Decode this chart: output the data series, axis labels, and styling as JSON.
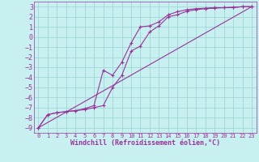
{
  "xlabel": "Windchill (Refroidissement éolien,°C)",
  "xlim": [
    -0.5,
    23.5
  ],
  "ylim": [
    -9.5,
    3.5
  ],
  "xticks": [
    0,
    1,
    2,
    3,
    4,
    5,
    6,
    7,
    8,
    9,
    10,
    11,
    12,
    13,
    14,
    15,
    16,
    17,
    18,
    19,
    20,
    21,
    22,
    23
  ],
  "yticks": [
    3,
    2,
    1,
    0,
    -1,
    -2,
    -3,
    -4,
    -5,
    -6,
    -7,
    -8,
    -9
  ],
  "bg_color": "#c8f0f0",
  "grid_color": "#a0d8d8",
  "line_color": "#993399",
  "line1_x": [
    0,
    1,
    2,
    3,
    4,
    5,
    6,
    7,
    8,
    9,
    10,
    11,
    12,
    13,
    14,
    15,
    16,
    17,
    18,
    19,
    20,
    21,
    22,
    23
  ],
  "line1_y": [
    -9.0,
    -7.7,
    -7.5,
    -7.4,
    -7.3,
    -7.1,
    -6.8,
    -3.3,
    -3.8,
    -2.5,
    -0.6,
    1.0,
    1.1,
    1.5,
    2.2,
    2.5,
    2.7,
    2.8,
    2.85,
    2.9,
    2.9,
    2.95,
    3.0,
    3.0
  ],
  "line2_x": [
    0,
    1,
    2,
    3,
    4,
    5,
    6,
    7,
    8,
    9,
    10,
    11,
    12,
    13,
    14,
    15,
    16,
    17,
    18,
    19,
    20,
    21,
    22,
    23
  ],
  "line2_y": [
    -9.0,
    -7.7,
    -7.5,
    -7.4,
    -7.3,
    -7.2,
    -7.0,
    -6.8,
    -5.0,
    -3.8,
    -1.4,
    -0.9,
    0.5,
    1.1,
    2.0,
    2.2,
    2.55,
    2.7,
    2.8,
    2.85,
    2.9,
    2.9,
    3.0,
    3.0
  ],
  "line3_x": [
    0,
    23
  ],
  "line3_y": [
    -9.0,
    3.0
  ],
  "font_size": 6,
  "lw": 0.8,
  "ms": 2.5
}
